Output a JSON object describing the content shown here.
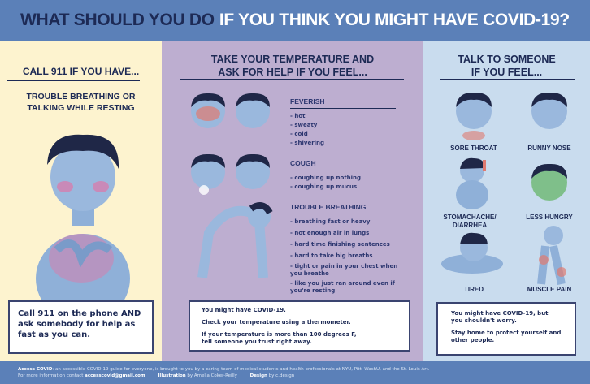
{
  "title": {
    "part1": "WHAT SHOULD YOU DO",
    "part2": "IF YOU THINK YOU MIGHT HAVE COVID-19?"
  },
  "left": {
    "heading": "CALL 911 IF YOU HAVE...",
    "symptom_line1": "TROUBLE BREATHING OR",
    "symptom_line2": "TALKING WHILE RESTING",
    "box": "Call 911 on the phone AND ask somebody for help as fast as you can."
  },
  "middle": {
    "heading_line1": "TAKE YOUR TEMPERATURE AND",
    "heading_line2": "ASK FOR HELP IF YOU FEEL...",
    "sections": [
      {
        "title": "FEVERISH",
        "items": [
          "- hot",
          "- sweaty",
          "- cold",
          "- shivering"
        ]
      },
      {
        "title": "COUGH",
        "items": [
          "- coughing up nothing",
          "- coughing up mucus"
        ]
      },
      {
        "title": "TROUBLE BREATHING",
        "items": [
          "- breathing fast or heavy",
          "- not enough air in lungs",
          "- hard time finishing sentences",
          "- hard to take big breaths",
          "- tight or pain in your chest when you breathe",
          "- like you just ran around even if you're resting"
        ]
      }
    ],
    "box": [
      "You might have COVID-19.",
      "Check your temperature using a thermometer.",
      "If your temperature is more than 100 degrees F, tell someone you trust right away."
    ]
  },
  "right": {
    "heading_line1": "TALK TO SOMEONE",
    "heading_line2": "IF YOU FEEL...",
    "symptoms": [
      "SORE THROAT",
      "RUNNY NOSE",
      "STOMACHACHE/ DIARRHEA",
      "LESS HUNGRY",
      "TIRED",
      "MUSCLE PAIN"
    ],
    "box": [
      "You might have COVID-19, but you shouldn't worry.",
      "Stay home to protect yourself and other people."
    ]
  },
  "footer": {
    "brand": "Access COVID",
    "line1": ": an accessible COVID-19 guide for everyone, is brought to you by a caring team of medical students and health professionals at NYU, Pitt, WashU, and the St. Louis Art.",
    "line2_prefix": "For more information contact",
    "email": "accesscovid@gmail.com",
    "illustration_label": "Illustration",
    "illustration_by": "by Amelia Coker-Reilly",
    "design_label": "Design",
    "design_by": "by c.design"
  },
  "colors": {
    "header": "#5b80b8",
    "navy": "#1d2a55",
    "left_bg": "#fdf3cf",
    "middle_bg": "#bdaed0",
    "right_bg": "#c9dcee"
  }
}
